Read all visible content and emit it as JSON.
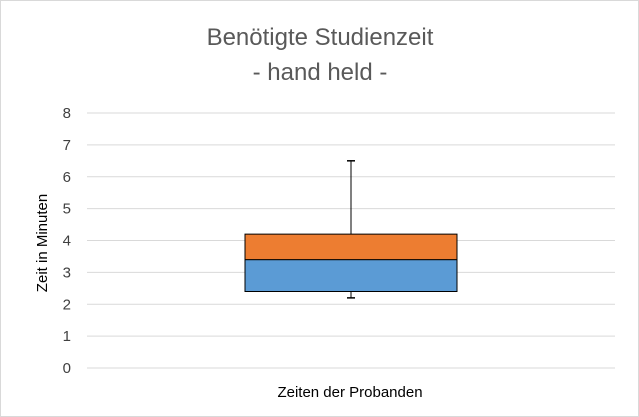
{
  "chart_data": {
    "type": "boxplot",
    "title": "Benötigte Studienzeit",
    "subtitle": "- hand held -",
    "xlabel": "Zeiten der Probanden",
    "ylabel": "Zeit in Minuten",
    "ylim": [
      0,
      8
    ],
    "yticks": [
      "0",
      "1",
      "2",
      "3",
      "4",
      "5",
      "6",
      "7",
      "8"
    ],
    "grid": true,
    "box": {
      "min": 2.2,
      "q1": 2.4,
      "median": 3.4,
      "q3": 4.2,
      "max": 6.5
    },
    "colors": {
      "lower_box": "#5b9bd5",
      "upper_box": "#ed7d31",
      "grid": "#d9d9d9",
      "whisker": "#000000"
    }
  }
}
